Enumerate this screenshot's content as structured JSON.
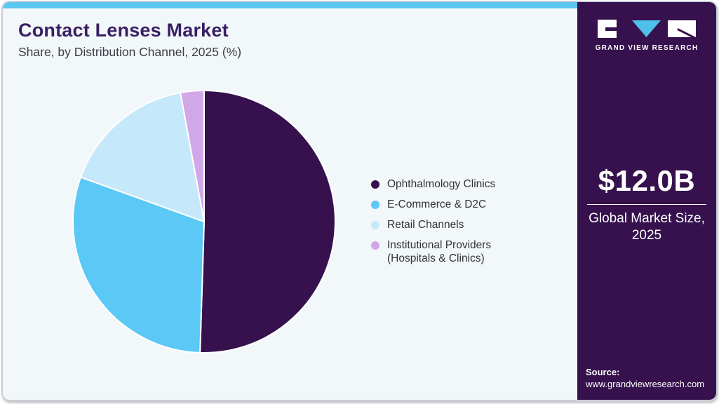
{
  "header": {
    "title": "Contact Lenses Market",
    "subtitle": "Share, by Distribution Channel, 2025 (%)"
  },
  "chart_data": {
    "type": "pie",
    "title": "Contact Lenses Market Share, by Distribution Channel, 2025 (%)",
    "unit": "%",
    "direction": "clockwise",
    "start_angle_deg": 0,
    "legend_position": "right",
    "series": [
      {
        "name": "Ophthalmology Clinics",
        "value": 50.5,
        "color": "#36114e"
      },
      {
        "name": "E-Commerce & D2C",
        "value": 30.0,
        "color": "#5bc8f5"
      },
      {
        "name": "Retail Channels",
        "value": 16.6,
        "color": "#c5e9fa"
      },
      {
        "name": "Institutional Providers (Hospitals & Clinics)",
        "value": 2.9,
        "color": "#d2a7e8"
      }
    ]
  },
  "sidebar": {
    "logo_brand": "GRAND VIEW RESEARCH",
    "market_size_value": "$12.0B",
    "market_size_label": "Global Market Size, 2025",
    "source_label": "Source:",
    "source_url": "www.grandviewresearch.com"
  },
  "colors": {
    "accent_strip": "#5bc6f0",
    "card_bg": "#f2f7fa",
    "sidebar_bg": "#36114e",
    "title_text": "#3a1f63",
    "logo_triangle": "#4fc0ea",
    "slice_gap_stroke": "#ffffff"
  }
}
